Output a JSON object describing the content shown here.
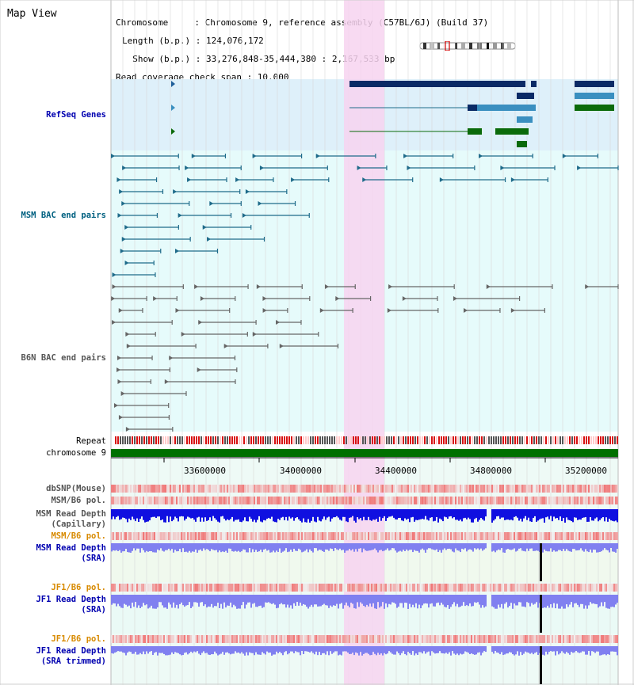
{
  "page_title": "Map View",
  "info": {
    "line1": "Chromosome     : Chromosome 9, reference assembly (C57BL/6J) (Build 37)",
    "line2": "Length (b.p.) : 124,076,172",
    "line3": "  Show (b.p.) : 33,276,848-35,444,380 : 2,167,533 bp",
    "line4": "Read coverage check span : 10,000"
  },
  "colors": {
    "refseq_bg": "#def0fa",
    "bac_bg": "#e6fbfb",
    "highlight": "#f7d4f0",
    "chromosome_bar": "#007000",
    "msm_bac": "#1f6b8a",
    "b6n_bac": "#666666",
    "read_depth_capillary": "#1010e0",
    "read_depth_sra": "#8080f0"
  },
  "tracks": {
    "refseq": "RefSeq Genes",
    "msm_bac": "MSM BAC end pairs",
    "b6n_bac": "B6N BAC end pairs",
    "repeat": "Repeat",
    "chromosome": "chromosome 9",
    "dbsnp": "dbSNP(Mouse)",
    "msm_b6_pol": "MSM/B6 pol.",
    "msm_depth_cap_1": "MSM Read Depth",
    "msm_depth_cap_2": "(Capillary)",
    "msm_b6_pol_2": "MSM/B6 pol.",
    "msm_depth_sra_1": "MSM Read Depth",
    "msm_depth_sra_2": "(SRA)",
    "jf1_b6_pol": "JF1/B6 pol.",
    "jf1_depth_sra_1": "JF1 Read Depth",
    "jf1_depth_sra_2": "(SRA)",
    "jf1_b6_pol_2": "JF1/B6 pol.",
    "jf1_depth_trim_1": "JF1 Read Depth",
    "jf1_depth_trim_2": "(SRA trimmed)"
  },
  "axis": {
    "ticks": [
      "33600000",
      "34000000",
      "34400000",
      "34800000",
      "35200000"
    ]
  }
}
